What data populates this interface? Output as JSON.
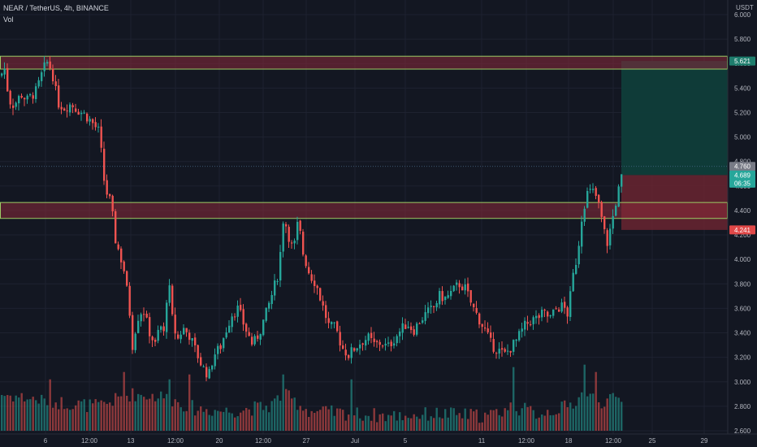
{
  "header": {
    "symbol": "NEAR / TetherUS, 4h, BINANCE",
    "volume_label": "Vol",
    "currency": "USDT"
  },
  "colors": {
    "background": "#131722",
    "up": "#26a69a",
    "down": "#ef5350",
    "grid": "#1e2230",
    "zone_fill": "#8b2a3a",
    "zone_border": "#9ccc65",
    "target_fill": "#0f3d3a",
    "stop_fill": "#6a2430"
  },
  "chart_data": {
    "type": "candlestick",
    "title": "NEAR / TetherUS, 4h, BINANCE",
    "ylabel": "USDT",
    "ylim": [
      2.6,
      6.0
    ],
    "y_ticks": [
      "6.000",
      "5.800",
      "5.600",
      "5.400",
      "5.200",
      "5.000",
      "4.800",
      "4.600",
      "4.400",
      "4.200",
      "4.000",
      "3.800",
      "3.600",
      "3.400",
      "3.200",
      "3.000",
      "2.800",
      "2.600"
    ],
    "x_ticks": [
      "6",
      "12:00",
      "13",
      "12:00",
      "20",
      "12:00",
      "27",
      "Jul",
      "5",
      "11",
      "12:00",
      "18",
      "12:00",
      "25",
      "29"
    ],
    "price_tags": [
      {
        "label": "5.621",
        "value": 5.621,
        "kind": "target"
      },
      {
        "label": "4.760",
        "value": 4.76,
        "kind": "current"
      },
      {
        "label": "4.689",
        "value": 4.689,
        "kind": "last"
      },
      {
        "label": "06:35",
        "value": 4.62,
        "kind": "countdown"
      },
      {
        "label": "4.241",
        "value": 4.241,
        "kind": "stop"
      }
    ],
    "zones": [
      {
        "name": "upper resistance zone",
        "from": 5.555,
        "to": 5.66
      },
      {
        "name": "lower support zone",
        "from": 4.335,
        "to": 4.465
      }
    ],
    "position": {
      "entry": 4.689,
      "target": 5.621,
      "stop": 4.241
    },
    "price_path": [
      [
        0,
        5.5
      ],
      [
        4,
        5.58
      ],
      [
        10,
        5.3
      ],
      [
        16,
        5.26
      ],
      [
        25,
        5.35
      ],
      [
        32,
        5.3
      ],
      [
        44,
        5.38
      ],
      [
        52,
        5.55
      ],
      [
        58,
        5.62
      ],
      [
        64,
        5.5
      ],
      [
        70,
        5.28
      ],
      [
        78,
        5.24
      ],
      [
        86,
        5.27
      ],
      [
        95,
        5.22
      ],
      [
        104,
        5.18
      ],
      [
        112,
        5.12
      ],
      [
        120,
        5.05
      ],
      [
        124,
        4.85
      ],
      [
        128,
        4.58
      ],
      [
        136,
        4.45
      ],
      [
        140,
        4.18
      ],
      [
        146,
        4.05
      ],
      [
        152,
        3.9
      ],
      [
        158,
        3.6
      ],
      [
        162,
        3.3
      ],
      [
        168,
        3.52
      ],
      [
        175,
        3.6
      ],
      [
        182,
        3.42
      ],
      [
        190,
        3.3
      ],
      [
        196,
        3.48
      ],
      [
        200,
        3.35
      ],
      [
        206,
        3.85
      ],
      [
        212,
        3.45
      ],
      [
        218,
        3.35
      ],
      [
        224,
        3.44
      ],
      [
        232,
        3.38
      ],
      [
        240,
        3.25
      ],
      [
        248,
        3.12
      ],
      [
        256,
        3.05
      ],
      [
        262,
        3.22
      ],
      [
        270,
        3.28
      ],
      [
        276,
        3.4
      ],
      [
        284,
        3.55
      ],
      [
        292,
        3.6
      ],
      [
        300,
        3.45
      ],
      [
        310,
        3.3
      ],
      [
        318,
        3.4
      ],
      [
        326,
        3.55
      ],
      [
        334,
        3.72
      ],
      [
        342,
        3.9
      ],
      [
        348,
        4.36
      ],
      [
        354,
        4.2
      ],
      [
        360,
        4.06
      ],
      [
        366,
        4.32
      ],
      [
        372,
        4.05
      ],
      [
        380,
        3.88
      ],
      [
        388,
        3.8
      ],
      [
        396,
        3.62
      ],
      [
        404,
        3.45
      ],
      [
        412,
        3.44
      ],
      [
        420,
        3.28
      ],
      [
        428,
        3.22
      ],
      [
        436,
        3.28
      ],
      [
        444,
        3.33
      ],
      [
        452,
        3.36
      ],
      [
        460,
        3.3
      ],
      [
        468,
        3.32
      ],
      [
        476,
        3.28
      ],
      [
        484,
        3.35
      ],
      [
        492,
        3.42
      ],
      [
        500,
        3.48
      ],
      [
        508,
        3.42
      ],
      [
        516,
        3.5
      ],
      [
        524,
        3.56
      ],
      [
        532,
        3.6
      ],
      [
        540,
        3.7
      ],
      [
        548,
        3.68
      ],
      [
        556,
        3.74
      ],
      [
        564,
        3.8
      ],
      [
        572,
        3.76
      ],
      [
        580,
        3.62
      ],
      [
        588,
        3.52
      ],
      [
        596,
        3.42
      ],
      [
        604,
        3.3
      ],
      [
        612,
        3.26
      ],
      [
        620,
        3.22
      ],
      [
        628,
        3.28
      ],
      [
        636,
        3.35
      ],
      [
        644,
        3.45
      ],
      [
        652,
        3.5
      ],
      [
        660,
        3.52
      ],
      [
        668,
        3.56
      ],
      [
        676,
        3.52
      ],
      [
        684,
        3.6
      ],
      [
        692,
        3.62
      ],
      [
        698,
        3.55
      ],
      [
        704,
        3.85
      ],
      [
        710,
        4.05
      ],
      [
        716,
        4.4
      ],
      [
        722,
        4.54
      ],
      [
        728,
        4.56
      ],
      [
        734,
        4.5
      ],
      [
        740,
        4.32
      ],
      [
        746,
        4.12
      ],
      [
        752,
        4.3
      ],
      [
        758,
        4.5
      ],
      [
        765,
        4.689
      ]
    ],
    "volume_path": [
      [
        0,
        2.9
      ],
      [
        60,
        2.84
      ],
      [
        120,
        2.8
      ],
      [
        160,
        2.9
      ],
      [
        200,
        2.88
      ],
      [
        240,
        2.78
      ],
      [
        280,
        2.76
      ],
      [
        330,
        2.8
      ],
      [
        348,
        2.9
      ],
      [
        380,
        2.76
      ],
      [
        430,
        2.74
      ],
      [
        480,
        2.72
      ],
      [
        540,
        2.74
      ],
      [
        600,
        2.72
      ],
      [
        630,
        2.8
      ],
      [
        660,
        2.74
      ],
      [
        700,
        2.8
      ],
      [
        716,
        2.9
      ],
      [
        740,
        2.84
      ],
      [
        765,
        2.86
      ]
    ],
    "volume_spikes": [
      [
        60,
        3.02
      ],
      [
        152,
        3.08
      ],
      [
        206,
        3.02
      ],
      [
        232,
        3.06
      ],
      [
        348,
        3.06
      ],
      [
        430,
        3.02
      ],
      [
        630,
        3.12
      ],
      [
        716,
        3.14
      ],
      [
        730,
        3.08
      ]
    ]
  }
}
